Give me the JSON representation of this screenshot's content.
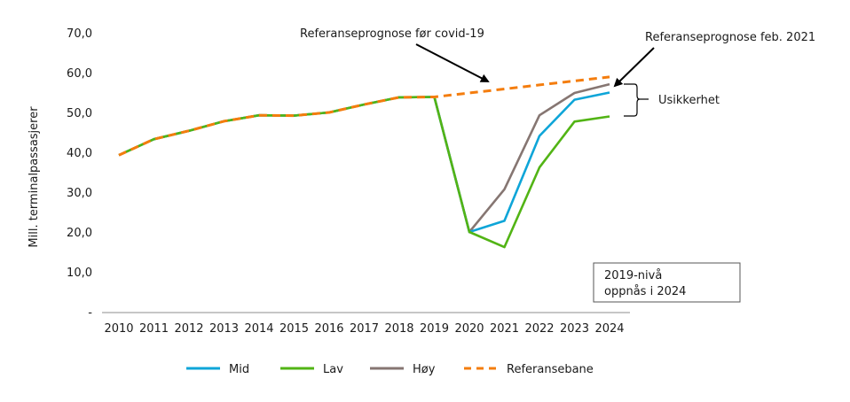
{
  "chart_data": {
    "type": "line",
    "title": "",
    "xlabel": "",
    "ylabel": "Mill. terminalpassasjerer",
    "ylim": [
      0,
      70
    ],
    "yticks": [
      0,
      10,
      20,
      30,
      40,
      50,
      60,
      70
    ],
    "ytick_labels": [
      "-",
      "10,0",
      "20,0",
      "30,0",
      "40,0",
      "50,0",
      "60,0",
      "70,0"
    ],
    "categories": [
      "2010",
      "2011",
      "2012",
      "2013",
      "2014",
      "2015",
      "2016",
      "2017",
      "2018",
      "2019",
      "2020",
      "2021",
      "2022",
      "2023",
      "2024"
    ],
    "grid": false,
    "legend_position": "bottom",
    "series": [
      {
        "name": "Mid",
        "color": "#0ea5d8",
        "dash": false,
        "values": [
          39.3,
          43.3,
          45.4,
          47.8,
          49.3,
          49.2,
          50.0,
          52.0,
          53.8,
          53.9,
          20.0,
          22.8,
          44.1,
          53.2,
          55.0
        ]
      },
      {
        "name": "Lav",
        "color": "#52b415",
        "dash": false,
        "values": [
          39.3,
          43.3,
          45.4,
          47.8,
          49.3,
          49.2,
          50.0,
          52.0,
          53.8,
          53.9,
          20.0,
          16.2,
          36.2,
          47.7,
          49.0
        ]
      },
      {
        "name": "Høy",
        "color": "#867672",
        "dash": false,
        "values": [
          39.3,
          43.3,
          45.4,
          47.8,
          49.3,
          49.2,
          50.0,
          52.0,
          53.8,
          53.9,
          20.0,
          30.7,
          49.3,
          54.9,
          57.1
        ]
      },
      {
        "name": "Referansebane",
        "color": "#f47d0e",
        "dash": true,
        "values": [
          39.3,
          43.3,
          45.4,
          47.8,
          49.3,
          49.2,
          50.0,
          52.0,
          53.8,
          53.9,
          54.9,
          55.9,
          56.9,
          57.9,
          58.9
        ]
      }
    ],
    "annotations": {
      "pre_covid": "Referanseprognose før covid-19",
      "feb_2021": "Referanseprognose feb. 2021",
      "uncertainty": "Usikkerhet",
      "box_line1": "2019-nivå",
      "box_line2": "oppnås i 2024"
    }
  }
}
